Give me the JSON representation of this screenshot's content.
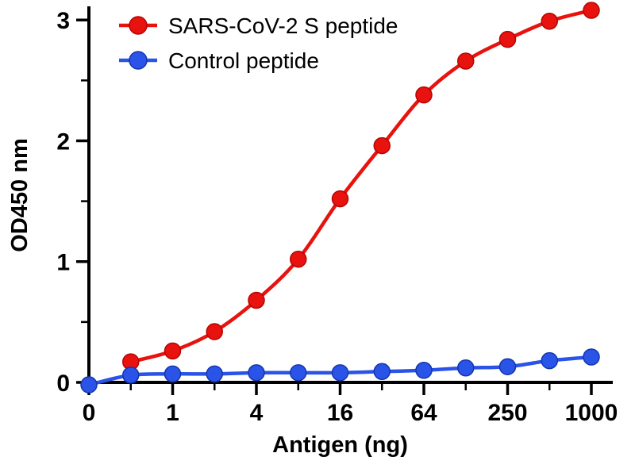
{
  "figure": {
    "kind": "ELISA antigen binding curve",
    "background": "#ffffff",
    "axis_color": "#000000"
  },
  "chart_data": {
    "type": "line",
    "title": "",
    "xlabel": "Antigen (ng)",
    "ylabel": "OD450 nm",
    "x_scale_note": "log2-like spacing of antigen amount, zero at origin",
    "x_values": [
      0,
      0.5,
      1,
      2,
      4,
      8,
      16,
      32,
      64,
      125,
      250,
      500,
      1000
    ],
    "x_major_tick_indices": [
      0,
      2,
      4,
      6,
      8,
      10,
      12
    ],
    "x_major_tick_labels": [
      "0",
      "1",
      "4",
      "16",
      "64",
      "250",
      "1000"
    ],
    "y_major_ticks": [
      0,
      1,
      2,
      3
    ],
    "y_major_tick_labels": [
      "0",
      "1",
      "2",
      "3"
    ],
    "y_minor_ticks": [
      0.5,
      1.5,
      2.5
    ],
    "ylim": [
      0,
      3.1
    ],
    "grid": false,
    "legend_position": "top-left",
    "series": [
      {
        "name": "SARS-CoV-2 S peptide",
        "color": "#e8120e",
        "edge_color": "#b50505",
        "values": [
          null,
          0.17,
          0.26,
          0.42,
          0.68,
          1.02,
          1.52,
          1.96,
          2.38,
          2.66,
          2.84,
          2.99,
          3.08
        ]
      },
      {
        "name": "Control peptide",
        "color": "#2a53e8",
        "edge_color": "#1535ad",
        "values": [
          -0.02,
          0.06,
          0.07,
          0.07,
          0.08,
          0.08,
          0.08,
          0.09,
          0.1,
          0.12,
          0.13,
          0.18,
          0.21
        ]
      }
    ]
  }
}
